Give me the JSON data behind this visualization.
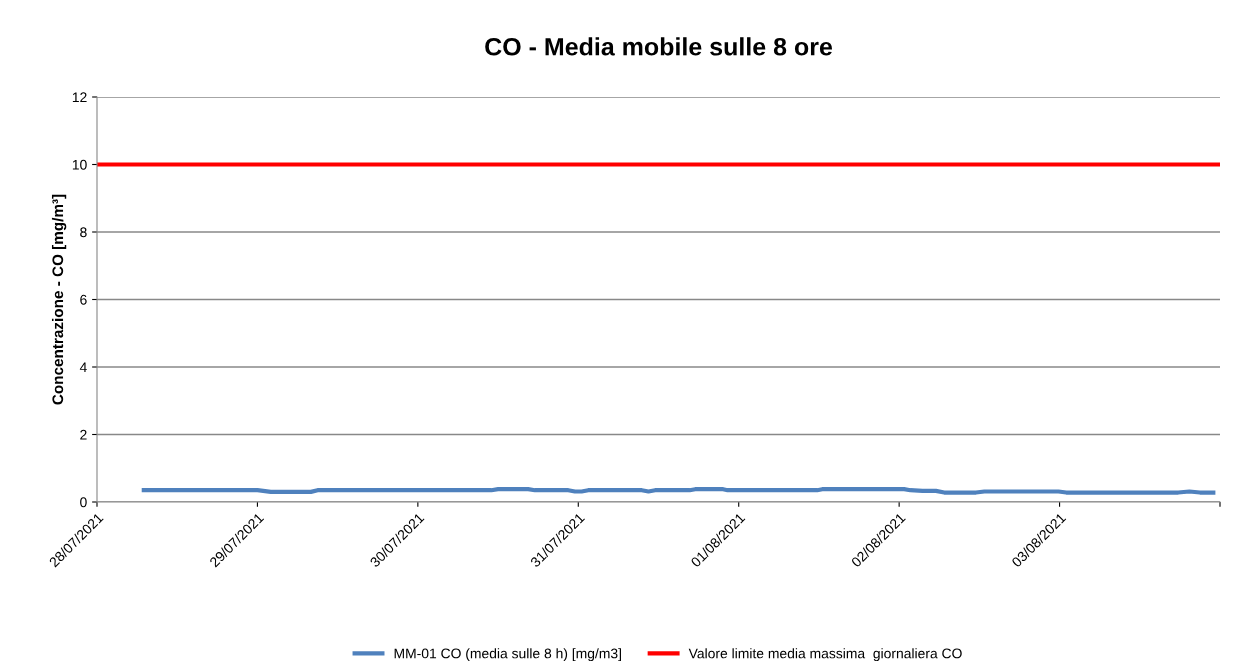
{
  "chart_data": {
    "type": "line",
    "title": "CO - Media mobile sulle 8 ore",
    "ylabel": "Concentrazione - CO [mg/m³]",
    "xlim": [
      "2021-07-28",
      "2021-08-04"
    ],
    "xticks": [
      {
        "value": "2021-07-28",
        "label": "28/07/2021"
      },
      {
        "value": "2021-07-29",
        "label": "29/07/2021"
      },
      {
        "value": "2021-07-30",
        "label": "30/07/2021"
      },
      {
        "value": "2021-07-31",
        "label": "31/07/2021"
      },
      {
        "value": "2021-08-01",
        "label": "01/08/2021"
      },
      {
        "value": "2021-08-02",
        "label": "02/08/2021"
      },
      {
        "value": "2021-08-03",
        "label": "03/08/2021"
      },
      {
        "value": "2021-08-04",
        "label": null
      }
    ],
    "ylim": [
      0,
      12
    ],
    "yticks": [
      0,
      2,
      4,
      6,
      8,
      10,
      12
    ],
    "grid": "y",
    "legend": "bottom",
    "marker": "none",
    "line_style": "solid",
    "series": [
      {
        "name": "MM-01 CO (media sulle 8 h) [mg/m3]",
        "color": "#4f81bd",
        "x": [
          "2021-07-28T07:00",
          "2021-07-29T00:00",
          "2021-07-29T02:00",
          "2021-07-29T08:00",
          "2021-07-29T09:00",
          "2021-07-30T11:00",
          "2021-07-30T12:00",
          "2021-07-30T16:30",
          "2021-07-30T17:30",
          "2021-07-30T22:30",
          "2021-07-30T23:30",
          "2021-07-31T00:30",
          "2021-07-31T01:30",
          "2021-07-31T09:30",
          "2021-07-31T10:30",
          "2021-07-31T11:30",
          "2021-07-31T16:40",
          "2021-07-31T17:30",
          "2021-07-31T21:40",
          "2021-07-31T22:20",
          "2021-08-01T11:45",
          "2021-08-01T12:30",
          "2021-08-02T00:45",
          "2021-08-02T01:40",
          "2021-08-02T03:30",
          "2021-08-02T05:30",
          "2021-08-02T06:45",
          "2021-08-02T11:30",
          "2021-08-02T12:45",
          "2021-08-02T23:50",
          "2021-08-03T01:00",
          "2021-08-03T17:45",
          "2021-08-03T19:25",
          "2021-08-03T21:00",
          "2021-08-03T23:00"
        ],
        "values": [
          0.35,
          0.35,
          0.3,
          0.3,
          0.35,
          0.35,
          0.38,
          0.38,
          0.35,
          0.35,
          0.31,
          0.31,
          0.35,
          0.35,
          0.31,
          0.35,
          0.35,
          0.38,
          0.38,
          0.35,
          0.35,
          0.38,
          0.38,
          0.35,
          0.33,
          0.33,
          0.28,
          0.28,
          0.31,
          0.31,
          0.28,
          0.28,
          0.31,
          0.28,
          0.28
        ]
      },
      {
        "name": "Valore limite media massima  giornaliera CO",
        "color": "#ff0000",
        "x": [
          "2021-07-28",
          "2021-08-04"
        ],
        "values": [
          10,
          10
        ]
      }
    ]
  }
}
